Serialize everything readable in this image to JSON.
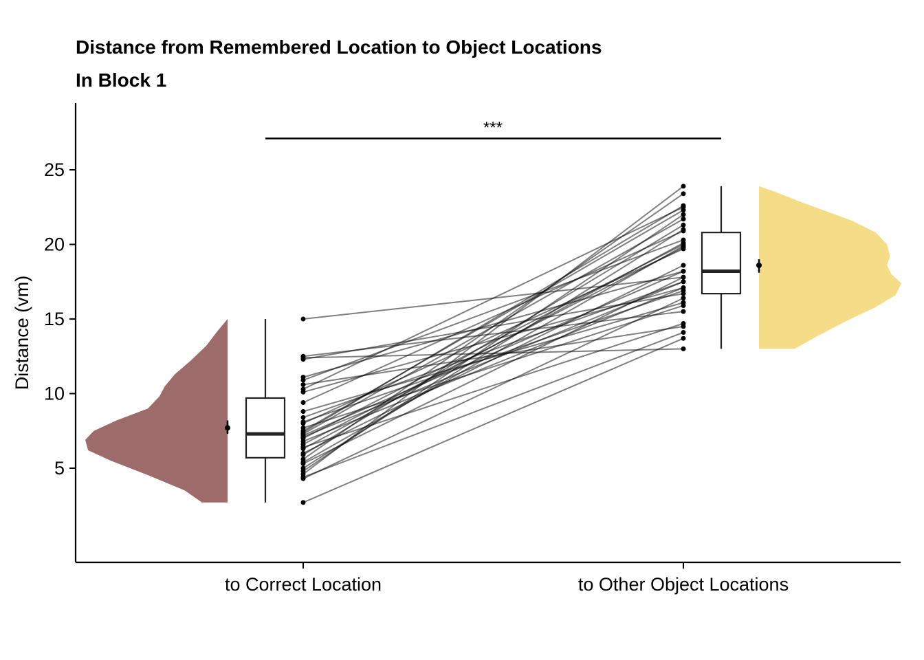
{
  "chart_data": {
    "type": "raincloud",
    "title": "Distance from Remembered Location to Object Locations",
    "subtitle": "In Block 1",
    "ylabel": "Distance (vm)",
    "xlabel": "",
    "ylim": [
      0,
      29.5
    ],
    "yticks": [
      5,
      10,
      15,
      20,
      25
    ],
    "categories": [
      "to Correct Location",
      "to Other Object Locations"
    ],
    "colors": {
      "correct": "#9e6b6b",
      "other": "#f5dc87"
    },
    "significance": {
      "label": "***",
      "y": 27.1
    },
    "series": [
      {
        "category": "to Correct Location",
        "box": {
          "min": 2.7,
          "q1": 5.7,
          "median": 7.3,
          "q3": 9.7,
          "max": 15.0
        },
        "mean": 7.7,
        "mean_ci": [
          7.3,
          8.2
        ],
        "density": [
          [
            2.7,
            0.18
          ],
          [
            3.5,
            0.3
          ],
          [
            4.5,
            0.55
          ],
          [
            5.5,
            0.82
          ],
          [
            6.2,
            0.98
          ],
          [
            6.9,
            1.0
          ],
          [
            7.5,
            0.94
          ],
          [
            8.2,
            0.78
          ],
          [
            9.0,
            0.56
          ],
          [
            9.8,
            0.48
          ],
          [
            10.5,
            0.44
          ],
          [
            11.3,
            0.37
          ],
          [
            12.2,
            0.26
          ],
          [
            13.2,
            0.15
          ],
          [
            14.2,
            0.07
          ],
          [
            15.0,
            0.0
          ]
        ]
      },
      {
        "category": "to Other Object Locations",
        "box": {
          "min": 13.0,
          "q1": 16.7,
          "median": 18.2,
          "q3": 20.8,
          "max": 23.9
        },
        "mean": 18.6,
        "mean_ci": [
          18.1,
          19.0
        ],
        "density": [
          [
            13.0,
            0.25
          ],
          [
            13.8,
            0.4
          ],
          [
            14.8,
            0.6
          ],
          [
            15.8,
            0.82
          ],
          [
            16.6,
            0.96
          ],
          [
            17.4,
            1.0
          ],
          [
            18.0,
            0.93
          ],
          [
            18.6,
            0.9
          ],
          [
            19.2,
            0.92
          ],
          [
            20.0,
            0.9
          ],
          [
            20.8,
            0.82
          ],
          [
            21.6,
            0.65
          ],
          [
            22.3,
            0.45
          ],
          [
            22.9,
            0.28
          ],
          [
            23.5,
            0.12
          ],
          [
            23.9,
            0.0
          ]
        ]
      }
    ],
    "paired": [
      [
        15.0,
        17.8
      ],
      [
        12.5,
        15.5
      ],
      [
        12.4,
        13.0
      ],
      [
        12.3,
        16.7
      ],
      [
        11.1,
        18.2
      ],
      [
        10.9,
        20.3
      ],
      [
        10.6,
        14.5
      ],
      [
        10.3,
        22.5
      ],
      [
        10.1,
        17.1
      ],
      [
        9.4,
        20.9
      ],
      [
        8.8,
        16.1
      ],
      [
        8.4,
        17.5
      ],
      [
        8.0,
        19.7
      ],
      [
        7.7,
        15.9
      ],
      [
        7.4,
        22.6
      ],
      [
        7.3,
        21.7
      ],
      [
        7.2,
        18.2
      ],
      [
        7.1,
        17.5
      ],
      [
        7.0,
        20.0
      ],
      [
        6.8,
        17.1
      ],
      [
        6.6,
        19.8
      ],
      [
        6.4,
        14.7
      ],
      [
        6.3,
        20.1
      ],
      [
        5.9,
        21.3
      ],
      [
        5.6,
        23.4
      ],
      [
        5.4,
        19.9
      ],
      [
        5.3,
        17.8
      ],
      [
        5.0,
        21.0
      ],
      [
        4.8,
        22.0
      ],
      [
        4.6,
        23.9
      ],
      [
        4.4,
        14.1
      ],
      [
        4.3,
        16.4
      ],
      [
        2.7,
        13.7
      ],
      [
        7.5,
        22.3
      ],
      [
        6.0,
        18.6
      ],
      [
        8.1,
        16.9
      ]
    ]
  }
}
